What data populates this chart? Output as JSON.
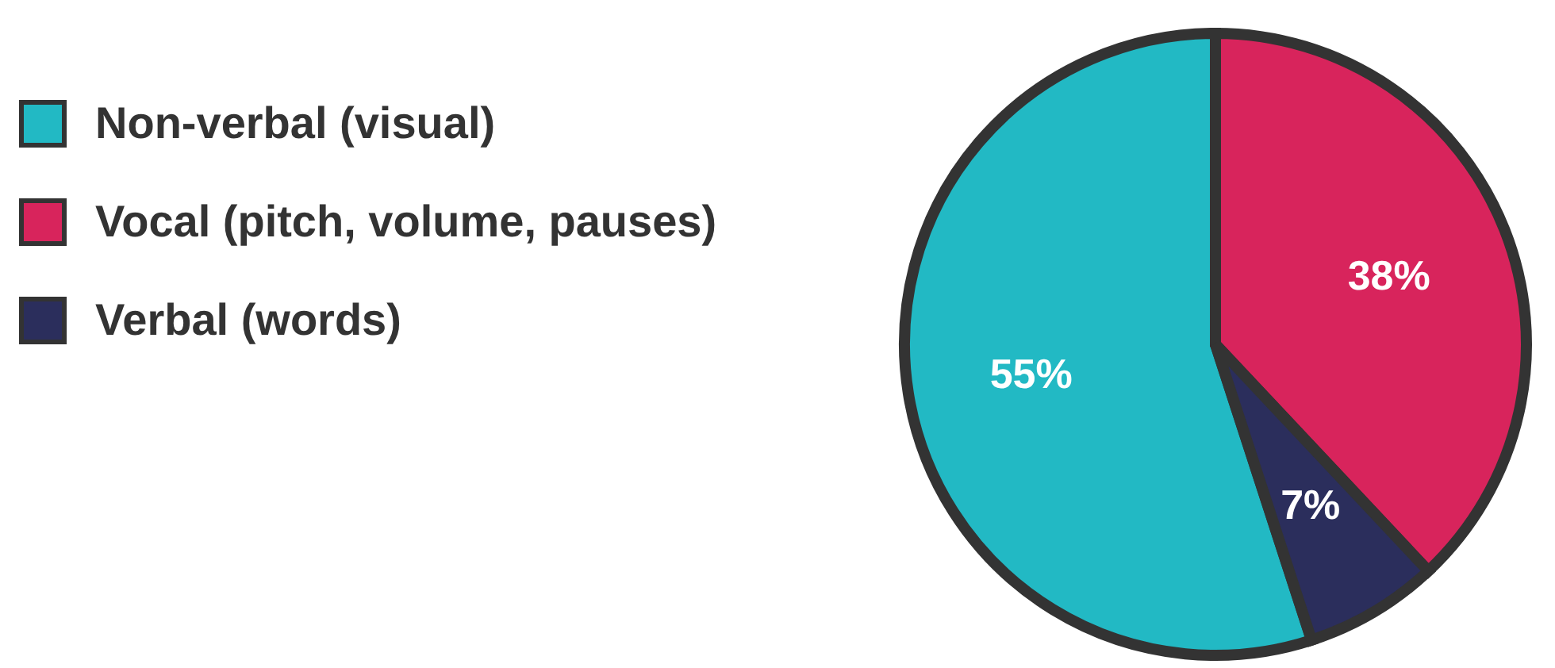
{
  "chart_data": {
    "type": "pie",
    "categories": [
      "Non-verbal (visual)",
      "Vocal (pitch, volume, pauses)",
      "Verbal (words)"
    ],
    "values": [
      55,
      38,
      7
    ],
    "colors": [
      "#22b9c4",
      "#d8245c",
      "#2b2e5c"
    ],
    "value_labels": [
      "55%",
      "38%",
      "7%"
    ],
    "legend": "left"
  }
}
